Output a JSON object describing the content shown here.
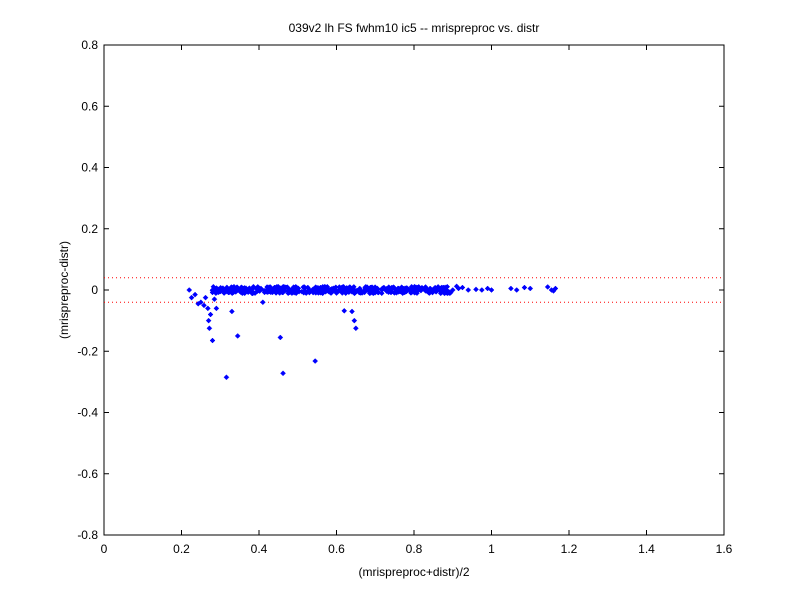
{
  "chart_data": {
    "type": "scatter",
    "title": "039v2 lh FS fwhm10 ic5 -- mrispreproc vs. distr",
    "xlabel": "(mrispreproc+distr)/2",
    "ylabel": "(mrispreproc-distr)",
    "xlim": [
      0,
      1.6
    ],
    "ylim": [
      -0.8,
      0.8
    ],
    "xticks": [
      "0",
      "0.2",
      "0.4",
      "0.6",
      "0.8",
      "1",
      "1.2",
      "1.4",
      "1.6"
    ],
    "yticks": [
      "-0.8",
      "-0.6",
      "-0.4",
      "-0.2",
      "0",
      "0.2",
      "0.4",
      "0.6",
      "0.8"
    ],
    "grid": false,
    "marker_color": "#0000ff",
    "reference_lines": {
      "y_values": [
        0.04,
        -0.04
      ],
      "color": "#ff0000",
      "style": "dotted"
    },
    "series": [
      {
        "x": [
          0.22,
          0.226,
          0.235,
          0.243,
          0.25,
          0.258,
          0.262,
          0.268,
          0.27,
          0.272,
          0.275,
          0.28,
          0.285,
          0.29,
          0.3,
          0.31,
          0.316,
          0.33,
          0.345,
          0.36,
          0.375,
          0.39,
          0.41,
          0.43,
          0.455,
          0.462,
          0.48,
          0.5,
          0.52,
          0.545,
          0.55,
          0.57,
          0.6,
          0.62,
          0.64,
          0.646,
          0.65,
          0.66,
          0.68,
          0.7,
          0.72,
          0.74,
          0.76,
          0.78,
          0.8,
          0.82,
          0.84,
          0.86,
          0.88,
          0.9,
          0.91,
          0.915,
          0.925,
          0.94,
          0.96,
          0.975,
          0.99,
          1.0,
          1.05,
          1.065,
          1.085,
          1.1,
          1.145,
          1.155,
          1.16,
          1.165,
          0.3,
          0.35,
          0.42,
          0.5,
          0.58,
          0.62,
          0.66,
          0.72,
          0.76,
          0.8,
          0.85,
          0.28,
          0.32,
          0.38,
          0.44,
          0.52,
          0.56,
          0.64,
          0.7,
          0.74,
          0.82,
          0.87,
          0.34,
          0.4,
          0.48,
          0.54,
          0.6,
          0.68,
          0.78,
          0.83,
          0.89,
          0.295,
          0.36,
          0.46,
          0.53,
          0.63,
          0.69,
          0.77,
          0.84
        ],
        "y": [
          0.0,
          -0.025,
          -0.015,
          -0.045,
          -0.04,
          -0.05,
          -0.025,
          -0.06,
          -0.1,
          -0.125,
          -0.08,
          -0.165,
          -0.03,
          -0.06,
          -0.005,
          -0.01,
          -0.285,
          -0.07,
          -0.15,
          -0.005,
          0.0,
          -0.01,
          -0.04,
          0.005,
          -0.155,
          -0.272,
          0.0,
          0.005,
          -0.005,
          -0.232,
          0.0,
          0.0,
          -0.01,
          -0.068,
          -0.07,
          -0.1,
          -0.125,
          0.005,
          0.0,
          -0.005,
          0.005,
          0.0,
          0.005,
          -0.005,
          0.0,
          0.005,
          -0.01,
          0.0,
          -0.005,
          0.0,
          0.012,
          0.005,
          0.008,
          0.0,
          0.002,
          0.0,
          0.005,
          0.0,
          0.005,
          0.0,
          0.008,
          0.005,
          0.01,
          0.0,
          -0.003,
          0.005,
          -0.005,
          0.003,
          -0.006,
          0.006,
          -0.004,
          0.007,
          -0.002,
          0.006,
          -0.006,
          0.004,
          0.002,
          -0.008,
          0.004,
          -0.003,
          0.008,
          -0.005,
          0.004,
          -0.006,
          0.006,
          -0.004,
          0.007,
          -0.003,
          -0.002,
          0.006,
          -0.007,
          0.003,
          -0.004,
          0.008,
          -0.005,
          0.003,
          -0.006,
          0.002,
          0.005,
          -0.008,
          0.001,
          -0.003,
          0.004,
          -0.005,
          0.003
        ]
      }
    ]
  }
}
